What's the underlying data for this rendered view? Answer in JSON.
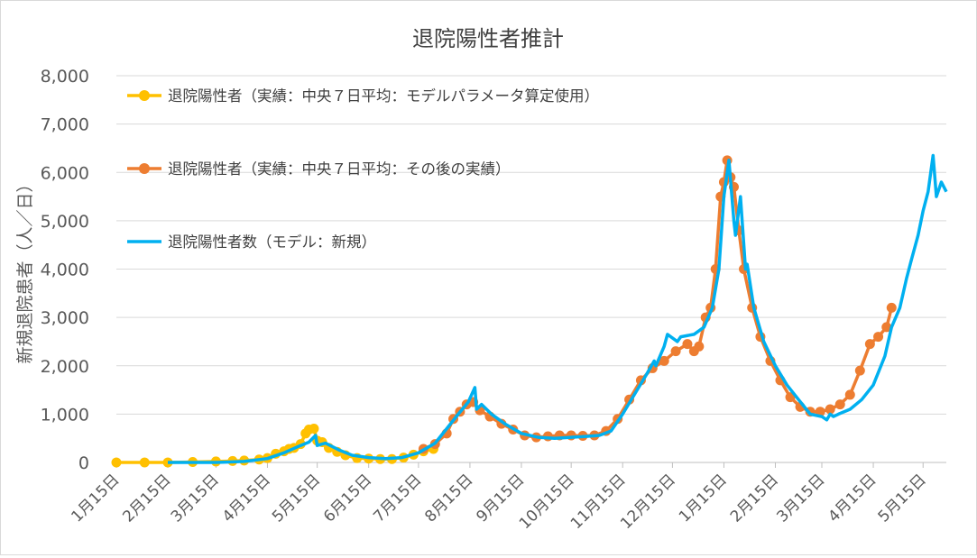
{
  "chart_data": {
    "type": "line",
    "title": "退院陽性者推計",
    "xlabel": "",
    "ylabel": "新規退院患者（人／日）",
    "ylim": [
      0,
      8000
    ],
    "yticks": [
      0,
      1000,
      2000,
      3000,
      4000,
      5000,
      6000,
      7000,
      8000
    ],
    "ytick_labels": [
      "0",
      "1,000",
      "2,000",
      "3,000",
      "4,000",
      "5,000",
      "6,000",
      "7,000",
      "8,000"
    ],
    "x_start": "2020-01-15",
    "x_end": "2021-05-29",
    "xticks": [
      "2020-01-15",
      "2020-02-15",
      "2020-03-15",
      "2020-04-15",
      "2020-05-15",
      "2020-06-15",
      "2020-07-15",
      "2020-08-15",
      "2020-09-15",
      "2020-10-15",
      "2020-11-15",
      "2020-12-15",
      "2021-01-15",
      "2021-02-15",
      "2021-03-15",
      "2021-04-15",
      "2021-05-15"
    ],
    "xtick_labels": [
      "1月15日",
      "2月15日",
      "3月15日",
      "4月15日",
      "5月15日",
      "6月15日",
      "7月15日",
      "8月15日",
      "9月15日",
      "10月15日",
      "11月15日",
      "12月15日",
      "1月15日",
      "2月15日",
      "3月15日",
      "4月15日",
      "5月15日"
    ],
    "grid": true,
    "legend_position": "top-left",
    "series": [
      {
        "name": "退院陽性者（実績：中央７日平均：モデルパラメータ算定使用）",
        "style": "line-markers",
        "color": "#ffc000",
        "x": [
          "2020-01-15",
          "2020-02-01",
          "2020-02-15",
          "2020-03-01",
          "2020-03-15",
          "2020-03-25",
          "2020-04-01",
          "2020-04-10",
          "2020-04-15",
          "2020-04-20",
          "2020-04-25",
          "2020-04-28",
          "2020-05-01",
          "2020-05-05",
          "2020-05-08",
          "2020-05-10",
          "2020-05-13",
          "2020-05-15",
          "2020-05-18",
          "2020-05-22",
          "2020-05-27",
          "2020-06-01",
          "2020-06-08",
          "2020-06-15",
          "2020-06-22",
          "2020-06-29",
          "2020-07-06",
          "2020-07-12",
          "2020-07-18",
          "2020-07-24"
        ],
        "y": [
          0,
          0,
          0,
          10,
          20,
          30,
          40,
          60,
          90,
          180,
          230,
          280,
          300,
          380,
          600,
          680,
          700,
          450,
          420,
          300,
          220,
          150,
          90,
          80,
          70,
          70,
          100,
          160,
          230,
          280
        ]
      },
      {
        "name": "退院陽性者（実績：中央７日平均：その後の実績）",
        "style": "line-markers",
        "color": "#ed7d31",
        "x": [
          "2020-07-18",
          "2020-07-25",
          "2020-08-01",
          "2020-08-05",
          "2020-08-09",
          "2020-08-13",
          "2020-08-17",
          "2020-08-21",
          "2020-08-27",
          "2020-09-03",
          "2020-09-10",
          "2020-09-17",
          "2020-09-24",
          "2020-10-01",
          "2020-10-08",
          "2020-10-15",
          "2020-10-22",
          "2020-10-29",
          "2020-11-05",
          "2020-11-12",
          "2020-11-19",
          "2020-11-26",
          "2020-12-03",
          "2020-12-10",
          "2020-12-17",
          "2020-12-24",
          "2020-12-28",
          "2020-12-31",
          "2021-01-04",
          "2021-01-07",
          "2021-01-10",
          "2021-01-13",
          "2021-01-15",
          "2021-01-17",
          "2021-01-19",
          "2021-01-21",
          "2021-01-24",
          "2021-01-27",
          "2021-02-01",
          "2021-02-06",
          "2021-02-12",
          "2021-02-18",
          "2021-02-24",
          "2021-03-02",
          "2021-03-08",
          "2021-03-14",
          "2021-03-20",
          "2021-03-26",
          "2021-04-01",
          "2021-04-07",
          "2021-04-13",
          "2021-04-18",
          "2021-04-23",
          "2021-04-26"
        ],
        "y": [
          280,
          380,
          600,
          900,
          1050,
          1200,
          1250,
          1080,
          950,
          800,
          680,
          560,
          520,
          540,
          560,
          560,
          550,
          560,
          650,
          900,
          1300,
          1700,
          1950,
          2100,
          2300,
          2450,
          2300,
          2400,
          3000,
          3200,
          4000,
          5500,
          5800,
          6250,
          5900,
          5700,
          4800,
          4000,
          3200,
          2600,
          2100,
          1700,
          1350,
          1150,
          1050,
          1050,
          1100,
          1200,
          1400,
          1900,
          2450,
          2600,
          2800,
          3200
        ]
      },
      {
        "name": "退院陽性者数（モデル：新規）",
        "style": "line",
        "color": "#00b0f0",
        "x": [
          "2020-02-15",
          "2020-03-01",
          "2020-03-15",
          "2020-04-01",
          "2020-04-15",
          "2020-04-25",
          "2020-05-05",
          "2020-05-10",
          "2020-05-14",
          "2020-05-15",
          "2020-05-20",
          "2020-05-28",
          "2020-06-05",
          "2020-06-15",
          "2020-06-25",
          "2020-07-05",
          "2020-07-15",
          "2020-07-25",
          "2020-08-01",
          "2020-08-08",
          "2020-08-14",
          "2020-08-18",
          "2020-08-19",
          "2020-08-22",
          "2020-08-28",
          "2020-09-05",
          "2020-09-15",
          "2020-09-25",
          "2020-10-05",
          "2020-10-15",
          "2020-10-25",
          "2020-11-01",
          "2020-11-08",
          "2020-11-15",
          "2020-11-22",
          "2020-11-29",
          "2020-12-04",
          "2020-12-05",
          "2020-12-10",
          "2020-12-12",
          "2020-12-18",
          "2020-12-20",
          "2020-12-28",
          "2021-01-03",
          "2021-01-08",
          "2021-01-12",
          "2021-01-15",
          "2021-01-18",
          "2021-01-21",
          "2021-01-22",
          "2021-01-25",
          "2021-01-28",
          "2021-01-29",
          "2021-02-02",
          "2021-02-08",
          "2021-02-15",
          "2021-02-22",
          "2021-03-01",
          "2021-03-08",
          "2021-03-15",
          "2021-03-18",
          "2021-03-20",
          "2021-03-22",
          "2021-03-25",
          "2021-04-01",
          "2021-04-08",
          "2021-04-15",
          "2021-04-22",
          "2021-04-26",
          "2021-05-01",
          "2021-05-05",
          "2021-05-08",
          "2021-05-12",
          "2021-05-15",
          "2021-05-18",
          "2021-05-21",
          "2021-05-23",
          "2021-05-26",
          "2021-05-29"
        ],
        "y": [
          0,
          0,
          0,
          20,
          80,
          200,
          350,
          420,
          560,
          350,
          400,
          260,
          150,
          100,
          80,
          100,
          200,
          400,
          700,
          1000,
          1250,
          1550,
          1100,
          1200,
          1000,
          800,
          600,
          520,
          500,
          520,
          540,
          560,
          650,
          1000,
          1400,
          1800,
          2100,
          2000,
          2400,
          2650,
          2500,
          2600,
          2650,
          2800,
          3200,
          4000,
          5500,
          6250,
          5000,
          4700,
          5500,
          4000,
          4100,
          3200,
          2500,
          2000,
          1600,
          1300,
          1000,
          950,
          880,
          1000,
          950,
          1000,
          1100,
          1300,
          1600,
          2200,
          2800,
          3200,
          3800,
          4200,
          4700,
          5200,
          5600,
          6350,
          5500,
          5800,
          5600
        ]
      }
    ]
  }
}
